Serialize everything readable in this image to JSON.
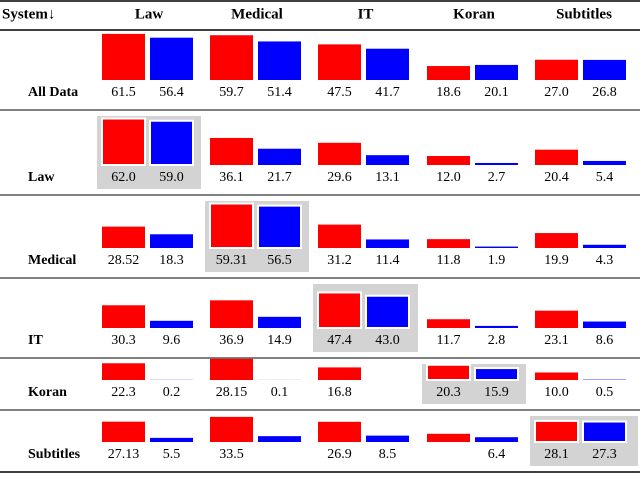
{
  "table": {
    "corner": "System↓",
    "columns": [
      "Law",
      "Medical",
      "IT",
      "Koran",
      "Subtitles"
    ],
    "series_colors": [
      "#ff0000",
      "#0000ff"
    ],
    "highlight_color": "#d3d3d3",
    "rows": [
      {
        "label": "All Data",
        "values": [
          61.5,
          56.4,
          59.7,
          51.4,
          47.5,
          41.7,
          18.6,
          20.1,
          27.0,
          26.8
        ],
        "value_labels": [
          "61.5",
          "56.4",
          "59.7",
          "51.4",
          "47.5",
          "41.7",
          "18.6",
          "20.1",
          "27.0",
          "26.8"
        ]
      },
      {
        "label": "Law",
        "highlight": 0,
        "values": [
          62.0,
          59.0,
          36.1,
          21.7,
          29.6,
          13.1,
          12.0,
          2.7,
          20.4,
          5.4
        ],
        "value_labels": [
          "62.0",
          "59.0",
          "36.1",
          "21.7",
          "29.6",
          "13.1",
          "12.0",
          "2.7",
          "20.4",
          "5.4"
        ]
      },
      {
        "label": "Medical",
        "highlight": 1,
        "values": [
          28.52,
          18.3,
          59.31,
          56.5,
          31.2,
          11.4,
          11.8,
          1.9,
          19.9,
          4.3
        ],
        "value_labels": [
          "28.52",
          "18.3",
          "59.31",
          "56.5",
          "31.2",
          "11.4",
          "11.8",
          "1.9",
          "19.9",
          "4.3"
        ]
      },
      {
        "label": "IT",
        "highlight": 2,
        "values": [
          30.3,
          9.6,
          36.9,
          14.9,
          47.4,
          43.0,
          11.7,
          2.8,
          23.1,
          8.6
        ],
        "value_labels": [
          "30.3",
          "9.6",
          "36.9",
          "14.9",
          "47.4",
          "43.0",
          "11.7",
          "2.8",
          "23.1",
          "8.6"
        ]
      },
      {
        "label": "Koran",
        "highlight": 3,
        "values": [
          22.3,
          0.2,
          28.15,
          0.1,
          16.8,
          null,
          20.3,
          15.9,
          10.0,
          0.5
        ],
        "value_labels": [
          "22.3",
          "0.2",
          "28.15",
          "0.1",
          "16.8",
          null,
          "20.3",
          "15.9",
          "10.0",
          "0.5"
        ]
      },
      {
        "label": "Subtitles",
        "highlight": 4,
        "values": [
          27.13,
          5.5,
          33.5,
          7.8,
          26.9,
          8.5,
          10.9,
          6.4,
          28.1,
          27.3
        ],
        "value_labels": [
          "27.13",
          "5.5",
          "33.5",
          null,
          "26.9",
          "8.5",
          null,
          "6.4",
          "28.1",
          "27.3"
        ]
      }
    ]
  }
}
